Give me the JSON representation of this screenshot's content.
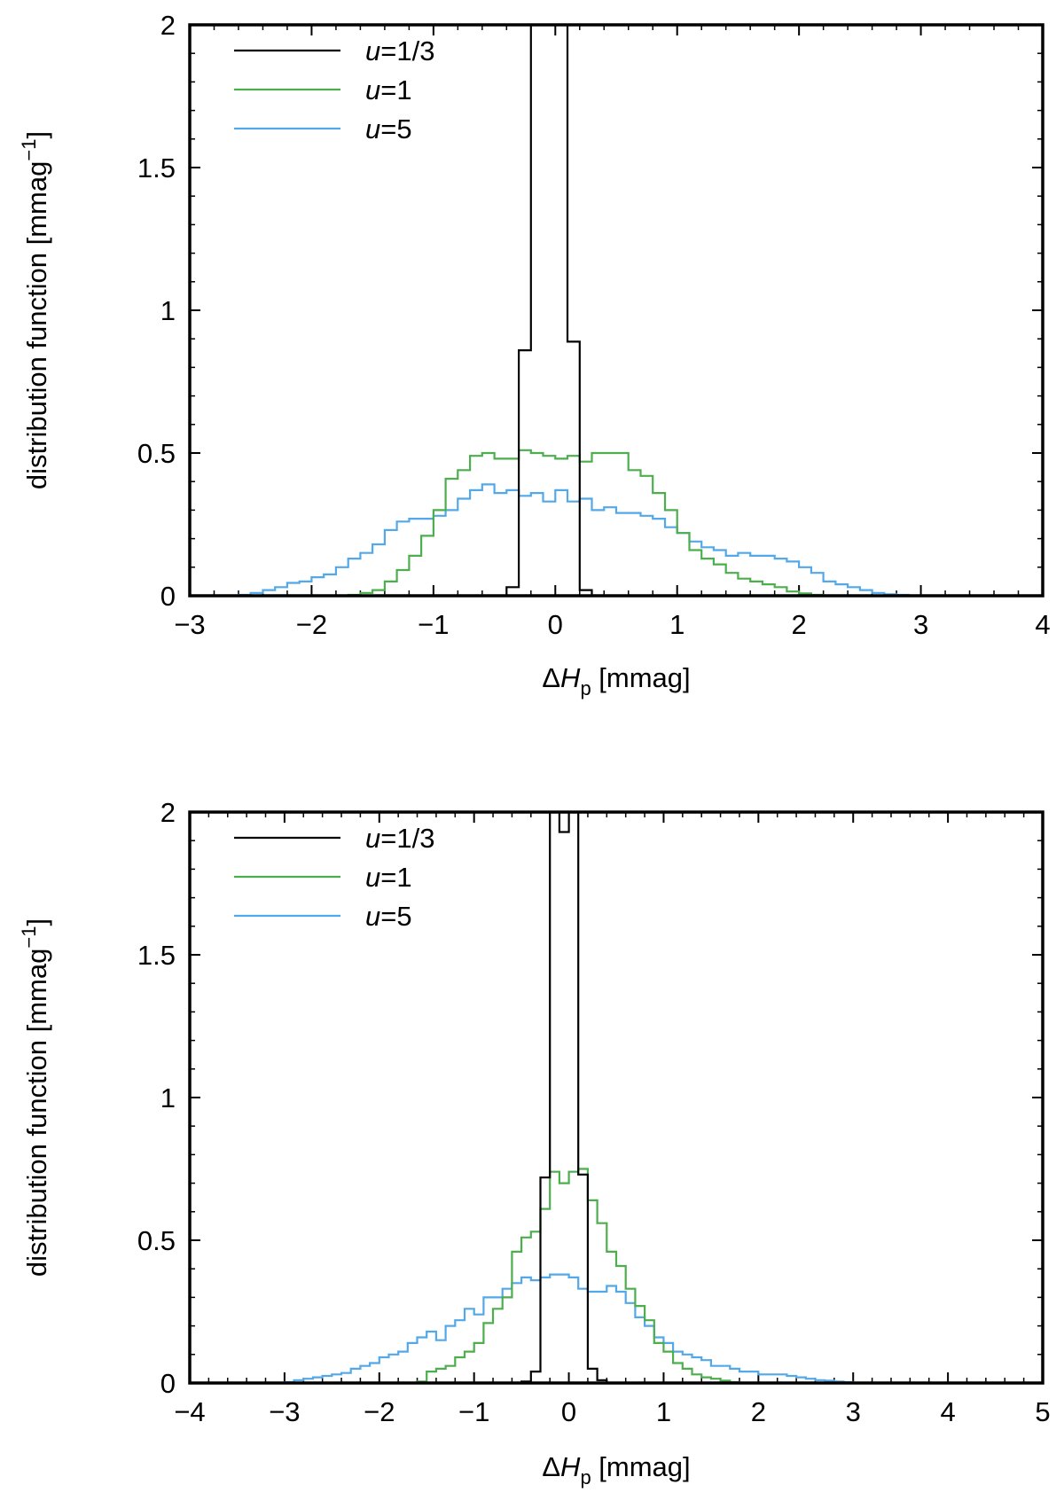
{
  "chart_data": [
    {
      "type": "line",
      "step": true,
      "xlabel": "ΔH_p [mmag]",
      "ylabel": "distribution function [mmag^-1]",
      "xlim": [
        -3,
        4
      ],
      "ylim": [
        0,
        2
      ],
      "xticks": [
        "−3",
        "−2",
        "−1",
        "0",
        "1",
        "2",
        "3",
        "4"
      ],
      "yticks": [
        "0",
        "0.5",
        "1",
        "1.5",
        "2"
      ],
      "legend_position": "top-left",
      "series": [
        {
          "name": "u=1/3",
          "color": "#000000",
          "edges": [
            -0.4,
            -0.3,
            -0.2,
            0.1,
            0.2,
            0.3
          ],
          "values": [
            0.03,
            0.86,
            2.2,
            0.89,
            0.02
          ]
        },
        {
          "name": "u=1",
          "color": "#4cae4c",
          "edges": [
            -1.7,
            -1.6,
            -1.5,
            -1.4,
            -1.3,
            -1.2,
            -1.1,
            -1.0,
            -0.9,
            -0.8,
            -0.7,
            -0.6,
            -0.5,
            -0.4,
            -0.3,
            -0.2,
            -0.1,
            0.0,
            0.1,
            0.2,
            0.3,
            0.4,
            0.5,
            0.6,
            0.7,
            0.8,
            0.9,
            1.0,
            1.1,
            1.2,
            1.3,
            1.4,
            1.5,
            1.6,
            1.7,
            1.8,
            1.9,
            2.0,
            2.1,
            2.2
          ],
          "values": [
            0.003,
            0.01,
            0.02,
            0.05,
            0.09,
            0.14,
            0.21,
            0.3,
            0.41,
            0.44,
            0.49,
            0.5,
            0.48,
            0.48,
            0.51,
            0.5,
            0.49,
            0.48,
            0.49,
            0.47,
            0.5,
            0.5,
            0.5,
            0.44,
            0.42,
            0.36,
            0.3,
            0.22,
            0.16,
            0.13,
            0.11,
            0.08,
            0.06,
            0.05,
            0.04,
            0.03,
            0.015,
            0.008,
            0.003
          ]
        },
        {
          "name": "u=5",
          "color": "#52a8e8",
          "edges": [
            -2.6,
            -2.5,
            -2.4,
            -2.3,
            -2.2,
            -2.1,
            -2.0,
            -1.9,
            -1.8,
            -1.7,
            -1.6,
            -1.5,
            -1.4,
            -1.3,
            -1.2,
            -1.1,
            -1.0,
            -0.9,
            -0.8,
            -0.7,
            -0.6,
            -0.5,
            -0.4,
            -0.3,
            -0.2,
            -0.1,
            0.0,
            0.1,
            0.2,
            0.3,
            0.4,
            0.5,
            0.6,
            0.7,
            0.8,
            0.9,
            1.0,
            1.1,
            1.2,
            1.3,
            1.4,
            1.5,
            1.6,
            1.7,
            1.8,
            1.9,
            2.0,
            2.1,
            2.2,
            2.3,
            2.4,
            2.5,
            2.6,
            2.7,
            2.8,
            2.9,
            3.0
          ],
          "values": [
            0.003,
            0.01,
            0.02,
            0.03,
            0.045,
            0.05,
            0.065,
            0.075,
            0.1,
            0.13,
            0.15,
            0.18,
            0.23,
            0.26,
            0.27,
            0.27,
            0.28,
            0.3,
            0.34,
            0.37,
            0.39,
            0.36,
            0.37,
            0.35,
            0.36,
            0.33,
            0.37,
            0.33,
            0.34,
            0.3,
            0.31,
            0.29,
            0.29,
            0.28,
            0.27,
            0.24,
            0.22,
            0.19,
            0.17,
            0.16,
            0.14,
            0.15,
            0.14,
            0.14,
            0.13,
            0.12,
            0.1,
            0.08,
            0.05,
            0.04,
            0.03,
            0.02,
            0.01,
            0.005,
            0.003,
            0.001
          ]
        }
      ]
    },
    {
      "type": "line",
      "step": true,
      "xlabel": "ΔH_p [mmag]",
      "ylabel": "distribution function [mmag^-1]",
      "xlim": [
        -4,
        5
      ],
      "ylim": [
        0,
        2
      ],
      "xticks": [
        "−4",
        "−3",
        "−2",
        "−1",
        "0",
        "1",
        "2",
        "3",
        "4",
        "5"
      ],
      "yticks": [
        "0",
        "0.5",
        "1",
        "1.5",
        "2"
      ],
      "legend_position": "top-left",
      "series": [
        {
          "name": "u=1/3",
          "color": "#000000",
          "edges": [
            -0.5,
            -0.4,
            -0.3,
            -0.2,
            -0.1,
            0.0,
            0.1,
            0.2,
            0.3,
            0.4
          ],
          "values": [
            0.005,
            0.04,
            0.72,
            2.2,
            1.93,
            2.2,
            0.73,
            0.05,
            0.01
          ]
        },
        {
          "name": "u=1",
          "color": "#4cae4c",
          "edges": [
            -1.6,
            -1.5,
            -1.4,
            -1.3,
            -1.2,
            -1.1,
            -1.0,
            -0.9,
            -0.8,
            -0.7,
            -0.6,
            -0.5,
            -0.4,
            -0.3,
            -0.2,
            -0.1,
            0.0,
            0.1,
            0.2,
            0.3,
            0.4,
            0.5,
            0.6,
            0.7,
            0.8,
            0.9,
            1.0,
            1.1,
            1.2,
            1.3,
            1.4,
            1.5,
            1.6,
            1.7,
            1.8
          ],
          "values": [
            0.005,
            0.04,
            0.05,
            0.06,
            0.09,
            0.11,
            0.14,
            0.21,
            0.26,
            0.3,
            0.46,
            0.51,
            0.53,
            0.61,
            0.74,
            0.7,
            0.74,
            0.75,
            0.64,
            0.56,
            0.46,
            0.41,
            0.33,
            0.27,
            0.22,
            0.14,
            0.11,
            0.07,
            0.05,
            0.03,
            0.02,
            0.015,
            0.008,
            0.003
          ]
        },
        {
          "name": "u=5",
          "color": "#52a8e8",
          "edges": [
            -3.0,
            -2.9,
            -2.8,
            -2.7,
            -2.6,
            -2.5,
            -2.4,
            -2.3,
            -2.2,
            -2.1,
            -2.0,
            -1.9,
            -1.8,
            -1.7,
            -1.6,
            -1.5,
            -1.4,
            -1.3,
            -1.2,
            -1.1,
            -1.0,
            -0.9,
            -0.8,
            -0.7,
            -0.6,
            -0.5,
            -0.4,
            -0.3,
            -0.2,
            -0.1,
            0.0,
            0.1,
            0.2,
            0.3,
            0.4,
            0.5,
            0.6,
            0.7,
            0.8,
            0.9,
            1.0,
            1.1,
            1.2,
            1.3,
            1.4,
            1.5,
            1.6,
            1.7,
            1.8,
            1.9,
            2.0,
            2.1,
            2.2,
            2.3,
            2.4,
            2.5,
            2.6,
            2.7,
            2.8,
            2.9,
            3.0,
            3.1
          ],
          "values": [
            0.003,
            0.01,
            0.015,
            0.02,
            0.025,
            0.03,
            0.035,
            0.05,
            0.06,
            0.07,
            0.09,
            0.1,
            0.11,
            0.14,
            0.16,
            0.18,
            0.15,
            0.2,
            0.22,
            0.26,
            0.24,
            0.3,
            0.3,
            0.33,
            0.35,
            0.37,
            0.36,
            0.37,
            0.38,
            0.38,
            0.37,
            0.33,
            0.32,
            0.32,
            0.34,
            0.32,
            0.28,
            0.23,
            0.2,
            0.16,
            0.14,
            0.11,
            0.1,
            0.09,
            0.08,
            0.06,
            0.06,
            0.05,
            0.04,
            0.04,
            0.03,
            0.03,
            0.03,
            0.025,
            0.02,
            0.015,
            0.01,
            0.008,
            0.005,
            0.003,
            0.001
          ]
        }
      ]
    }
  ]
}
